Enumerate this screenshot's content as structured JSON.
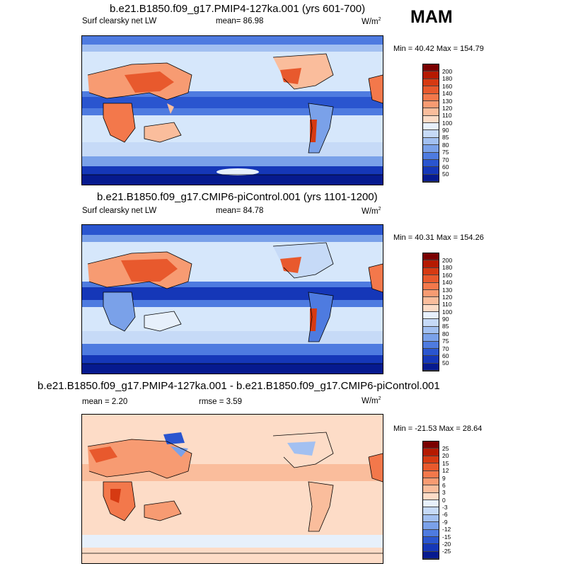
{
  "season": "MAM",
  "panels": [
    {
      "title": "b.e21.B1850.f09_g17.PMIP4-127ka.001 (yrs 601-700)",
      "left_label": "Surf clearsky net LW",
      "stat_label": "mean=  86.98",
      "units": "W/m",
      "units_sup": "2",
      "minmax": "Min = 40.42 Max = 154.79",
      "colorbar": {
        "labels": [
          "200",
          "180",
          "160",
          "140",
          "130",
          "120",
          "110",
          "100",
          "90",
          "85",
          "80",
          "75",
          "70",
          "60",
          "50"
        ],
        "colors": [
          "#7a0000",
          "#b51a00",
          "#d63a12",
          "#e8592d",
          "#f3784b",
          "#f79b72",
          "#fabd9c",
          "#fddcc7",
          "#e7f0fb",
          "#c6daf7",
          "#a2c0f1",
          "#7aa1e9",
          "#4e7be0",
          "#2a55cf",
          "#1537b8",
          "#061a8f"
        ]
      }
    },
    {
      "title": "b.e21.B1850.f09_g17.CMIP6-piControl.001 (yrs 1101-1200)",
      "left_label": "Surf clearsky net LW",
      "stat_label": "mean=  84.78",
      "units": "W/m",
      "units_sup": "2",
      "minmax": "Min = 40.31 Max = 154.26",
      "colorbar": {
        "labels": [
          "200",
          "180",
          "160",
          "140",
          "130",
          "120",
          "110",
          "100",
          "90",
          "85",
          "80",
          "75",
          "70",
          "60",
          "50"
        ],
        "colors": [
          "#7a0000",
          "#b51a00",
          "#d63a12",
          "#e8592d",
          "#f3784b",
          "#f79b72",
          "#fabd9c",
          "#fddcc7",
          "#e7f0fb",
          "#c6daf7",
          "#a2c0f1",
          "#7aa1e9",
          "#4e7be0",
          "#2a55cf",
          "#1537b8",
          "#061a8f"
        ]
      }
    },
    {
      "title": "b.e21.B1850.f09_g17.PMIP4-127ka.001 - b.e21.B1850.f09_g17.CMIP6-piControl.001",
      "left_label": "mean =  2.20",
      "stat_label": "rmse =  3.59",
      "units": "W/m",
      "units_sup": "2",
      "minmax": "Min = -21.53 Max =  28.64",
      "colorbar": {
        "labels": [
          "25",
          "20",
          "15",
          "12",
          "9",
          "6",
          "3",
          "0",
          "-3",
          "-6",
          "-9",
          "-12",
          "-15",
          "-20",
          "-25"
        ],
        "colors": [
          "#7a0000",
          "#b51a00",
          "#d63a12",
          "#e8592d",
          "#f3784b",
          "#f79b72",
          "#fabd9c",
          "#fddcc7",
          "#e7f0fb",
          "#c6daf7",
          "#a2c0f1",
          "#7aa1e9",
          "#4e7be0",
          "#2a55cf",
          "#1537b8",
          "#061a8f"
        ]
      }
    }
  ]
}
